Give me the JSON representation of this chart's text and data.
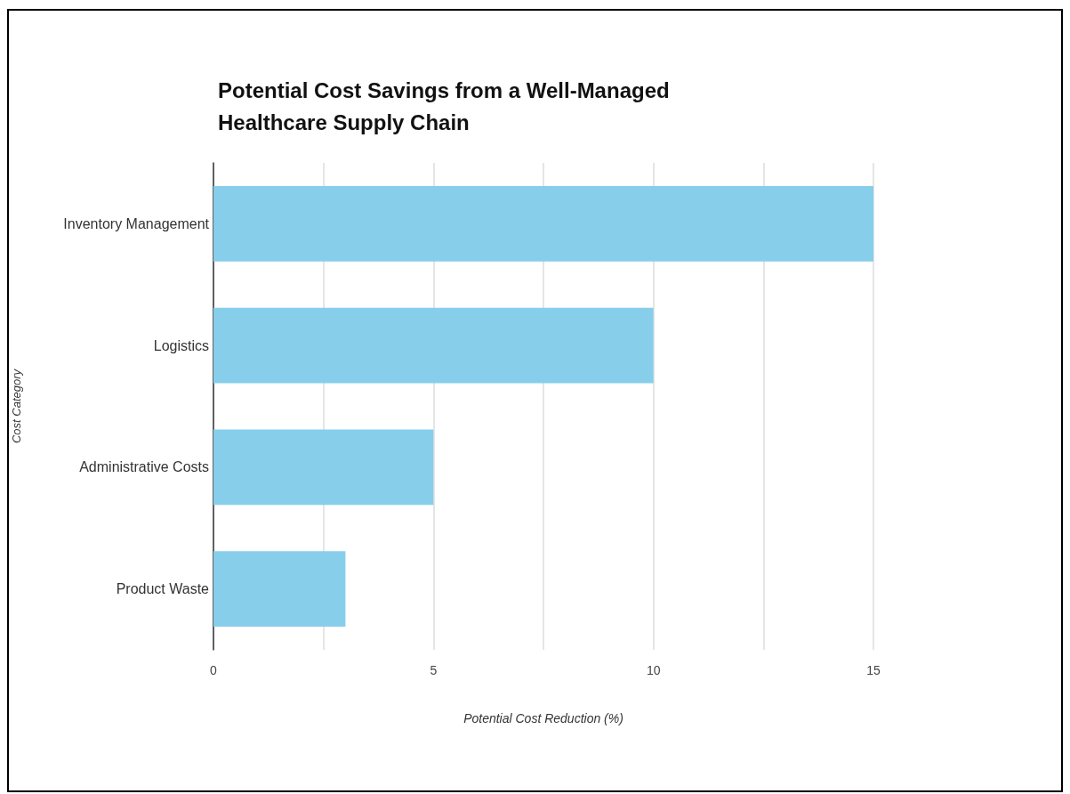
{
  "chart_data": {
    "type": "bar",
    "orientation": "horizontal",
    "title": "Potential Cost Savings from a Well-Managed\nHealthcare Supply Chain",
    "xlabel": "Potential Cost Reduction (%)",
    "ylabel": "Cost Category",
    "categories": [
      "Inventory Management",
      "Logistics",
      "Administrative Costs",
      "Product Waste"
    ],
    "values": [
      15,
      10,
      5,
      3
    ],
    "color": "#87ceeb",
    "xlim": [
      0,
      15
    ],
    "xticks": [
      0,
      {
        "value": 2.5,
        "label": null
      },
      5,
      {
        "value": 7.5,
        "label": null
      },
      10,
      {
        "value": 12.5,
        "label": null
      },
      15
    ],
    "grid": "x"
  }
}
